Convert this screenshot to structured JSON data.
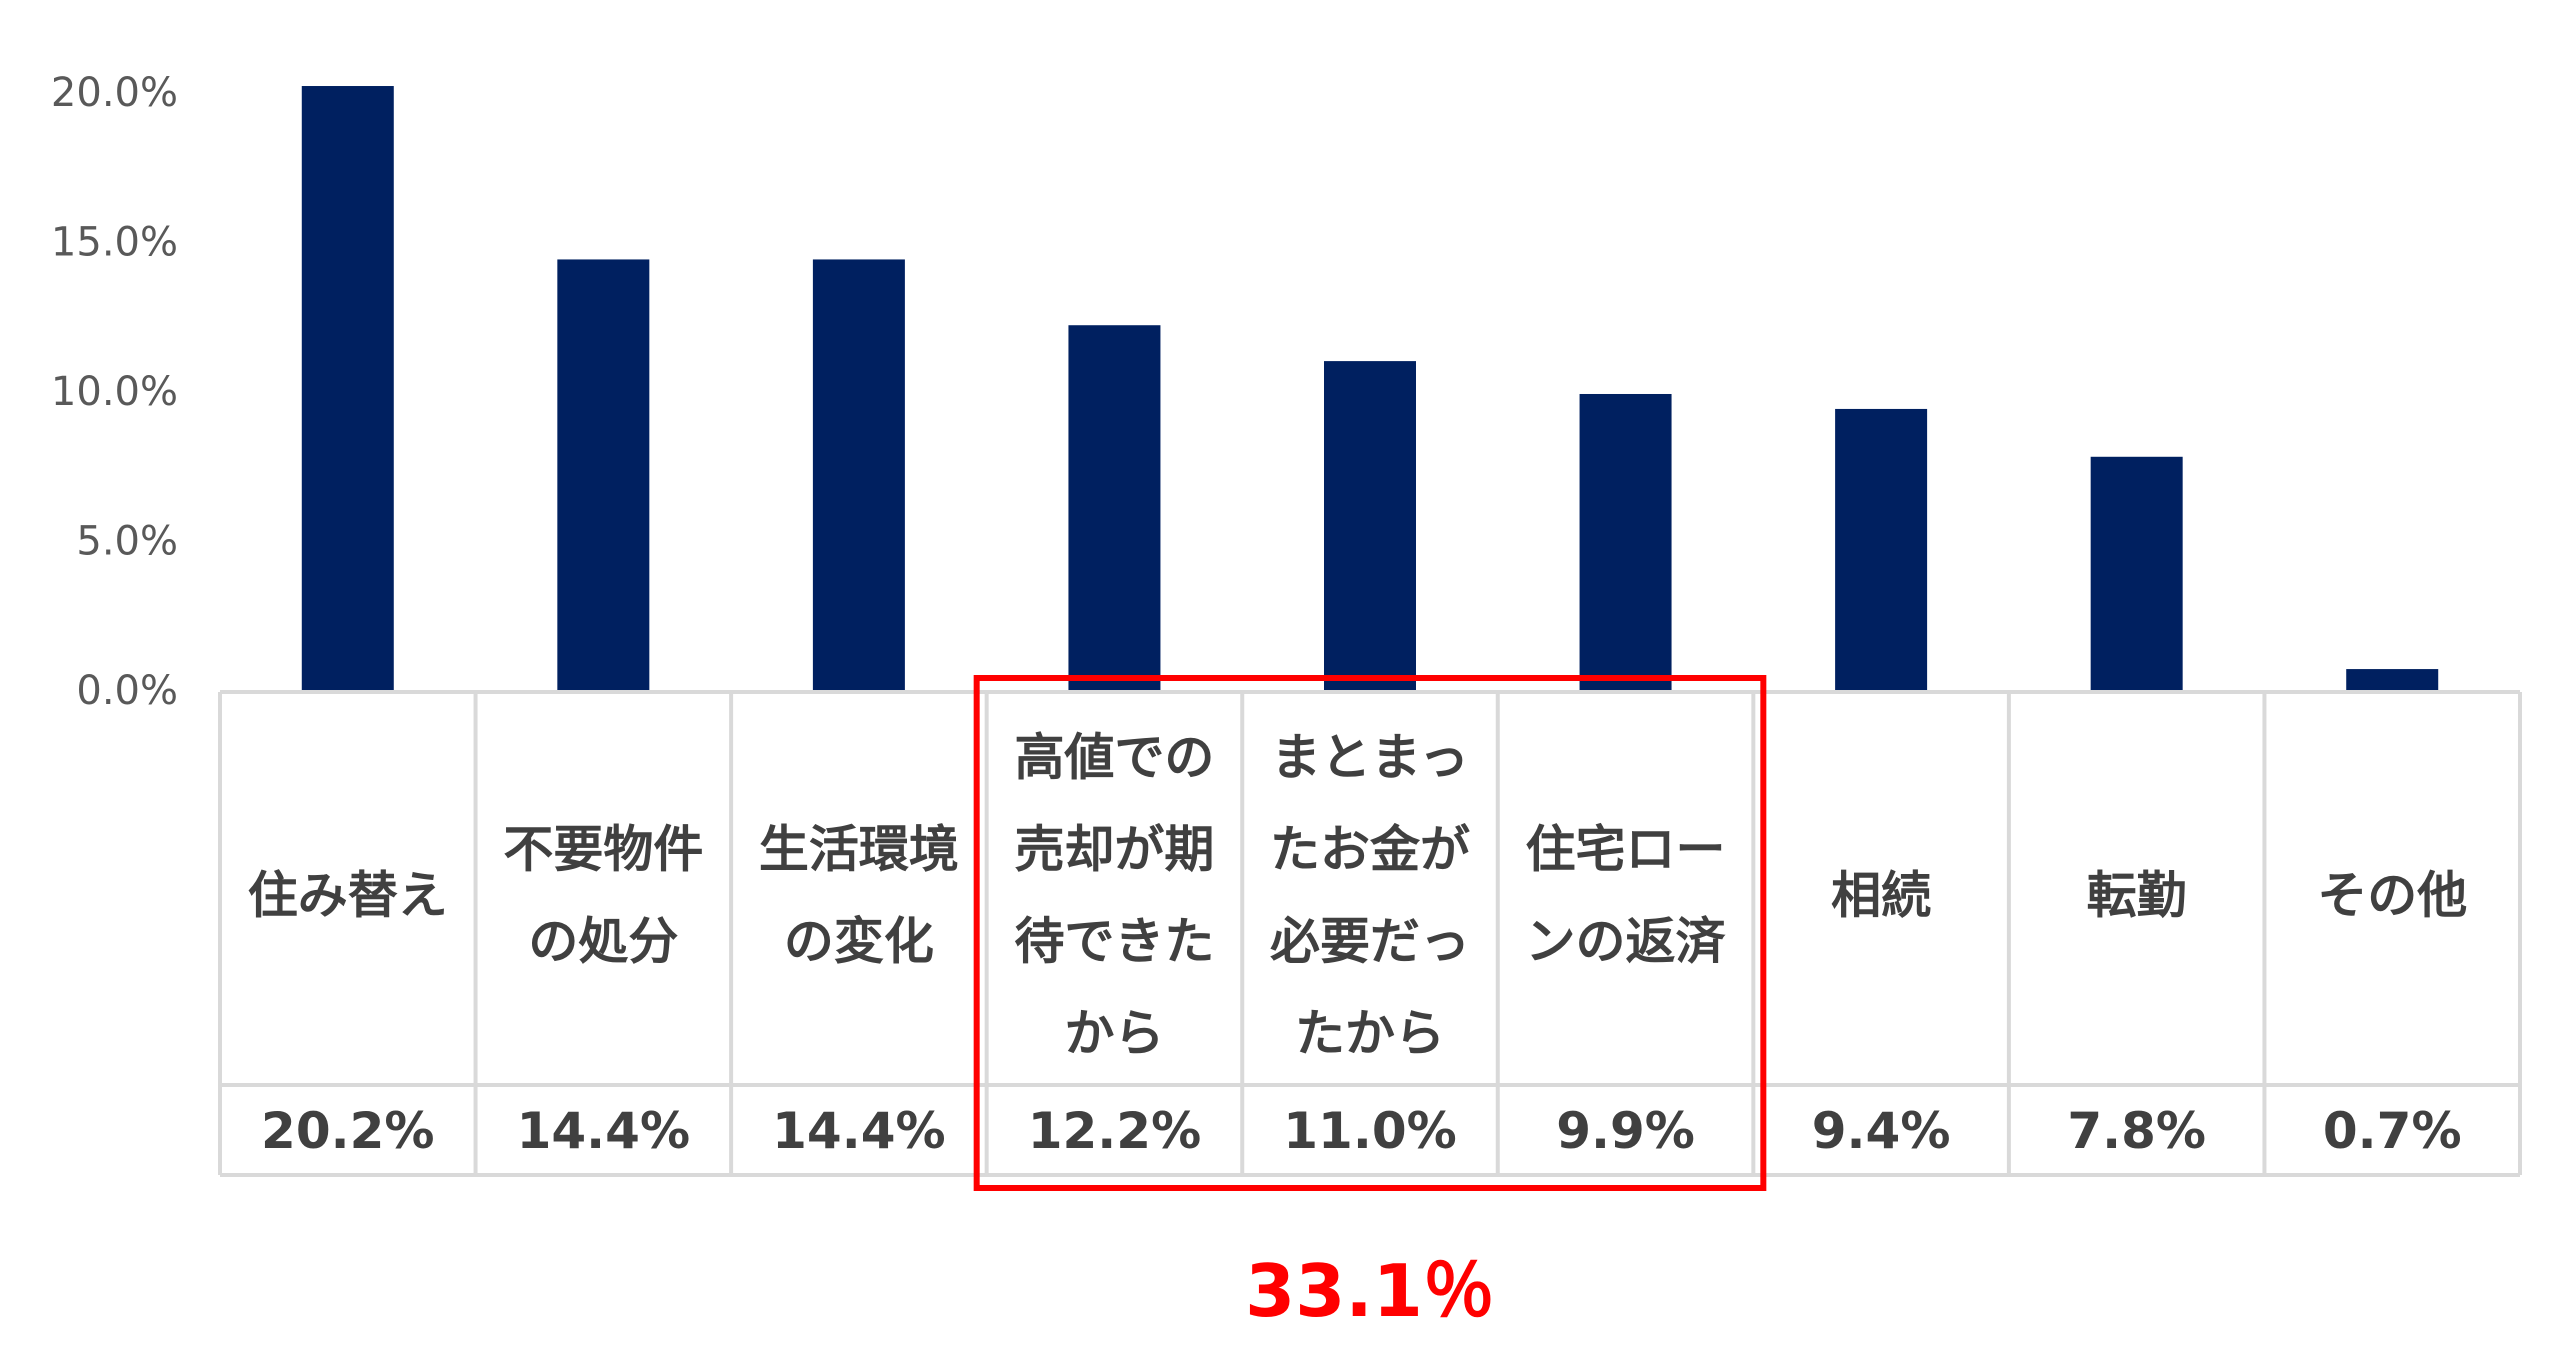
{
  "chart_data": {
    "type": "bar",
    "categories": [
      "住み替え",
      "不要物件の処分",
      "生活環境の変化",
      "高値での売却が期待できたから",
      "まとまったお金が必要だったから",
      "住宅ローンの返済",
      "相続",
      "転勤",
      "その他"
    ],
    "category_lines": [
      [
        "住み替え"
      ],
      [
        "不要物件",
        "の処分"
      ],
      [
        "生活環境",
        "の変化"
      ],
      [
        "高値での",
        "売却が期",
        "待できた",
        "から"
      ],
      [
        "まとまっ",
        "たお金が",
        "必要だっ",
        "たから"
      ],
      [
        "住宅ロー",
        "ンの返済"
      ],
      [
        "相続"
      ],
      [
        "転勤"
      ],
      [
        "その他"
      ]
    ],
    "values": [
      20.2,
      14.4,
      14.4,
      12.2,
      11.0,
      9.9,
      9.4,
      7.8,
      0.7
    ],
    "value_labels": [
      "20.2%",
      "14.4%",
      "14.4%",
      "12.2%",
      "11.0%",
      "9.9%",
      "9.4%",
      "7.8%",
      "0.7%"
    ],
    "ylim": [
      0,
      20
    ],
    "yticks": [
      "0.0%",
      "5.0%",
      "10.0%",
      "15.0%",
      "20.0%"
    ],
    "ytick_values": [
      0,
      5,
      10,
      15,
      20
    ],
    "bar_color": "#002060",
    "highlight": {
      "categories": [
        "高値での売却が期待できたから",
        "まとまったお金が必要だったから",
        "住宅ローンの返済"
      ],
      "label": "33.1％",
      "color": "#ff0000"
    }
  }
}
